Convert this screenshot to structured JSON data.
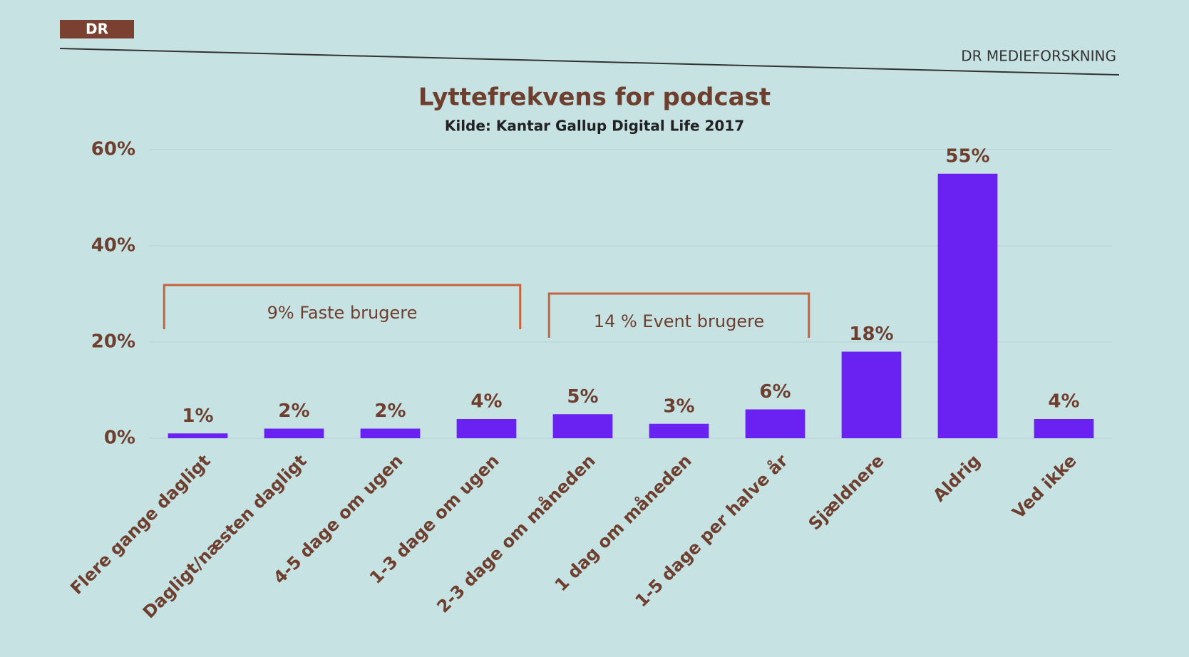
{
  "header": {
    "logo": "DR",
    "org": "DR MEDIEFORSKNING"
  },
  "chart_data": {
    "type": "bar",
    "title": "Lyttefrekvens for podcast",
    "subtitle": "Kilde: Kantar Gallup Digital Life 2017",
    "categories": [
      "Flere gange dagligt",
      "Dagligt/næsten dagligt",
      "4-5 dage om ugen",
      "1-3 dage om ugen",
      "2-3 dage om måneden",
      "1 dag om måneden",
      "1-5 dage per halve år",
      "Sjældnere",
      "Aldrig",
      "Ved ikke"
    ],
    "values": [
      1,
      2,
      2,
      4,
      5,
      3,
      6,
      18,
      55,
      4
    ],
    "value_labels": [
      "1%",
      "2%",
      "2%",
      "4%",
      "5%",
      "3%",
      "6%",
      "18%",
      "55%",
      "4%"
    ],
    "color": "#6a22f2",
    "ylim": [
      0,
      60
    ],
    "yticks": [
      {
        "value": 0,
        "label": "0%"
      },
      {
        "value": 20,
        "label": "20%"
      },
      {
        "value": 40,
        "label": "40%"
      },
      {
        "value": 60,
        "label": "60%"
      }
    ],
    "grid": true,
    "annotations": [
      "9% Faste brugere",
      "14 % Event brugere"
    ]
  }
}
